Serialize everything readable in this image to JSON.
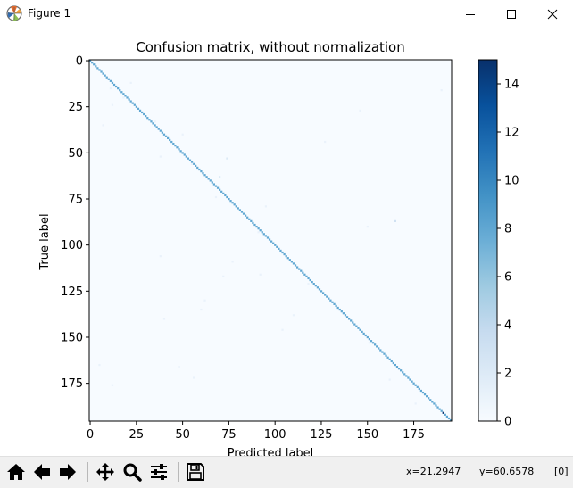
{
  "window": {
    "title": "Figure 1",
    "icon": "matplotlib-icon",
    "controls": [
      "minimize-icon",
      "maximize-icon",
      "close-icon"
    ]
  },
  "toolbar": {
    "buttons": [
      {
        "name": "home",
        "icon": "home-icon"
      },
      {
        "name": "back",
        "icon": "arrow-left-icon"
      },
      {
        "name": "forward",
        "icon": "arrow-right-icon"
      },
      {
        "name": "pan",
        "icon": "move-icon"
      },
      {
        "name": "zoom",
        "icon": "magnifier-icon"
      },
      {
        "name": "configure-subplots",
        "icon": "sliders-icon"
      },
      {
        "name": "save",
        "icon": "floppy-disk-icon"
      }
    ],
    "x_readout": "x=21.2947",
    "y_readout": "y=60.6578",
    "value_readout": "[0]"
  },
  "chart_data": {
    "type": "heatmap",
    "title": "Confusion matrix, without normalization",
    "xlabel": "Predicted label",
    "ylabel": "True label",
    "size": 196,
    "xlim": [
      -0.5,
      195.5
    ],
    "ylim": [
      195.5,
      -0.5
    ],
    "xticks": [
      0,
      25,
      50,
      75,
      100,
      125,
      150,
      175
    ],
    "yticks": [
      0,
      25,
      50,
      75,
      100,
      125,
      150,
      175
    ],
    "colormap": "Blues",
    "colormap_colors": [
      "#f7fbff",
      "#deebf7",
      "#c6dbef",
      "#9ecae1",
      "#6baed6",
      "#4292c6",
      "#2171b5",
      "#08519c",
      "#08306b"
    ],
    "vmin": 0,
    "vmax": 15,
    "colorbar_ticks": [
      0,
      2,
      4,
      6,
      8,
      10,
      12,
      14
    ],
    "diagonal_typical_value": 8,
    "diagonal_max": {
      "index": 191,
      "value": 15
    },
    "off_diagonal": [
      {
        "row": 87,
        "col": 165,
        "value": 3
      },
      {
        "row": 53,
        "col": 74,
        "value": 2
      },
      {
        "row": 63,
        "col": 70,
        "value": 2
      },
      {
        "row": 15,
        "col": 11,
        "value": 1
      },
      {
        "row": 20,
        "col": 18,
        "value": 1
      },
      {
        "row": 12,
        "col": 22,
        "value": 1
      },
      {
        "row": 33,
        "col": 35,
        "value": 1
      },
      {
        "row": 35,
        "col": 7,
        "value": 1
      },
      {
        "row": 40,
        "col": 50,
        "value": 1
      },
      {
        "row": 52,
        "col": 38,
        "value": 1
      },
      {
        "row": 56,
        "col": 55,
        "value": 1
      },
      {
        "row": 74,
        "col": 68,
        "value": 1
      },
      {
        "row": 79,
        "col": 95,
        "value": 1
      },
      {
        "row": 93,
        "col": 91,
        "value": 1
      },
      {
        "row": 106,
        "col": 38,
        "value": 1
      },
      {
        "row": 109,
        "col": 77,
        "value": 1
      },
      {
        "row": 116,
        "col": 92,
        "value": 1
      },
      {
        "row": 117,
        "col": 72,
        "value": 1
      },
      {
        "row": 121,
        "col": 118,
        "value": 1
      },
      {
        "row": 130,
        "col": 62,
        "value": 1
      },
      {
        "row": 135,
        "col": 60,
        "value": 1
      },
      {
        "row": 138,
        "col": 110,
        "value": 1
      },
      {
        "row": 140,
        "col": 40,
        "value": 1
      },
      {
        "row": 146,
        "col": 104,
        "value": 1
      },
      {
        "row": 153,
        "col": 151,
        "value": 1
      },
      {
        "row": 165,
        "col": 5,
        "value": 1
      },
      {
        "row": 166,
        "col": 48,
        "value": 1
      },
      {
        "row": 172,
        "col": 56,
        "value": 1
      },
      {
        "row": 173,
        "col": 162,
        "value": 1
      },
      {
        "row": 176,
        "col": 12,
        "value": 1
      },
      {
        "row": 186,
        "col": 176,
        "value": 1
      },
      {
        "row": 16,
        "col": 190,
        "value": 1
      },
      {
        "row": 27,
        "col": 146,
        "value": 1
      },
      {
        "row": 44,
        "col": 127,
        "value": 1
      },
      {
        "row": 90,
        "col": 150,
        "value": 1
      },
      {
        "row": 24,
        "col": 12,
        "value": 1
      }
    ]
  }
}
